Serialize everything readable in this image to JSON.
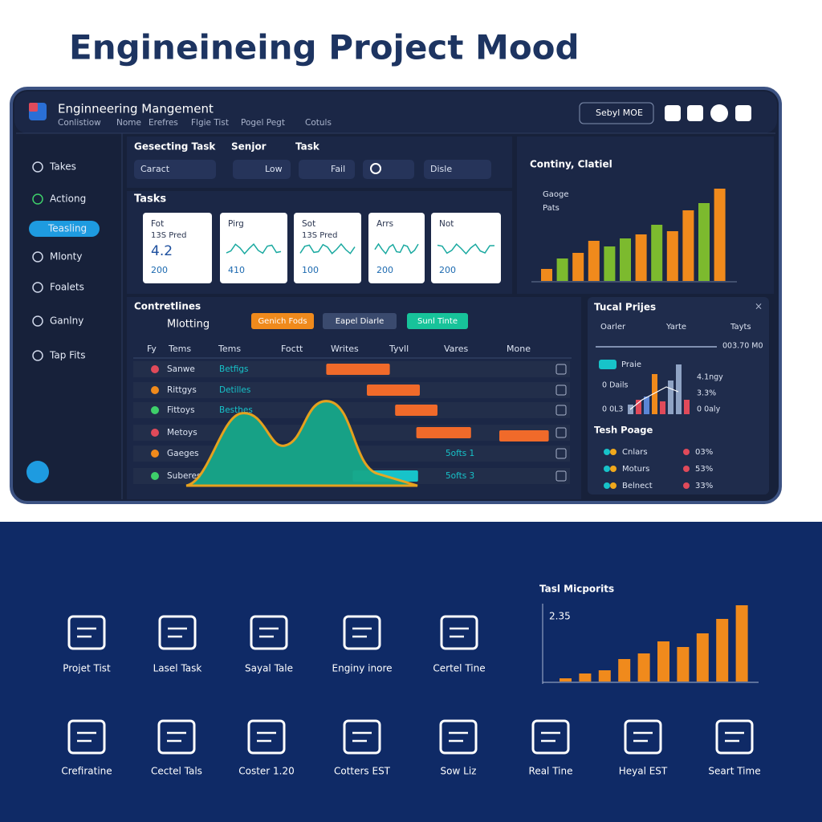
{
  "header": {
    "title": "Engineineing Project Mood"
  },
  "app": {
    "title": "Enginneering Mangement",
    "nav": [
      "Conlistiow",
      "Nome",
      "Erefres",
      "Flgie Tist",
      "Pogel Pegt",
      "Cotuls"
    ],
    "account": "Sebyl MOE"
  },
  "sidebar": {
    "items": [
      "Takes",
      "Actiong",
      "Teasling",
      "Mlonty",
      "Foalets",
      "Ganlny",
      "Tap Fits"
    ],
    "active": 2
  },
  "filters": {
    "labels": [
      "Gesecting Task",
      "Senjor",
      "Task"
    ],
    "controls": [
      "Caract",
      "Low",
      "Fail",
      "Disle"
    ]
  },
  "tasks": {
    "title": "Tasks",
    "cards": [
      {
        "label": "Fot",
        "sub": "13S Pred",
        "value": "4.2",
        "foot": "200"
      },
      {
        "label": "Pirg",
        "foot": "410"
      },
      {
        "label": "Sot",
        "sub": "13S Pred",
        "foot": "100"
      },
      {
        "label": "Arrs",
        "foot": "200"
      },
      {
        "label": "Not",
        "foot": "200"
      }
    ]
  },
  "trend_chart": {
    "title": "Continy, Clatiel",
    "legend": [
      "Gaoge",
      "Pats"
    ],
    "values": [
      15,
      28,
      35,
      50,
      43,
      53,
      58,
      70,
      62,
      88,
      97,
      115
    ],
    "colors": [
      "#f08a1c",
      "#7cba2e",
      "#f08a1c",
      "#f08a1c",
      "#7cba2e",
      "#7cba2e",
      "#f08a1c",
      "#7cba2e",
      "#f08a1c",
      "#f08a1c",
      "#7cba2e",
      "#f08a1c"
    ]
  },
  "timeline": {
    "title": "Contretlines",
    "subtitle": "Mlotting",
    "buttons": [
      "Genich Fods",
      "Eapel Diarle",
      "Sunl Tinte"
    ],
    "columns": [
      "Fy",
      "Tems",
      "Tems",
      "Foctt",
      "Writes",
      "Tyvll",
      "Vares",
      "Mone"
    ],
    "rows": [
      {
        "name": "Sanwe",
        "detail": "Betfigs",
        "bars": [
          {
            "start": 31,
            "end": 49,
            "color": "#f06a2a"
          }
        ]
      },
      {
        "name": "Rittgys",
        "detail": "Detilles",
        "bars": [
          {
            "start": 42.5,
            "end": 57.5,
            "color": "#f06a2a"
          }
        ]
      },
      {
        "name": "Fittoys",
        "detail": "Besthes",
        "bars": [
          {
            "start": 50.5,
            "end": 62.5,
            "color": "#f06a2a"
          }
        ]
      },
      {
        "name": "Metoys",
        "bars": [
          {
            "start": 56.5,
            "end": 72,
            "color": "#f06a2a"
          },
          {
            "start": 80,
            "end": 94,
            "color": "#f06a2a"
          }
        ]
      },
      {
        "name": "Gaeges",
        "detail": "5ofts 1",
        "bars": []
      },
      {
        "name": "Suberes",
        "detail": "5ofts 3",
        "bars": [
          {
            "start": 38.5,
            "end": 57,
            "color": "#17c3c9"
          }
        ]
      }
    ]
  },
  "summary": {
    "title": "Tucal Prijes",
    "columns": [
      "Oarler",
      "Yarte",
      "Tayts"
    ],
    "range": "003.70 M0",
    "tag": "Praie",
    "left_labels": [
      "0 Dails",
      "0 0L3"
    ],
    "right_labels": [
      "4.1ngy",
      "3.3%",
      "0 0aly"
    ],
    "bars": [
      12,
      18,
      22,
      50,
      16,
      42,
      62,
      18
    ],
    "bar_colors": [
      "#8fa3c4",
      "#e04a5a",
      "#5b86d6",
      "#f08a1c",
      "#e04a5a",
      "#8fa3c4",
      "#8fa3c4",
      "#e04a5a"
    ],
    "list_title": "Tesh Poage",
    "list": [
      {
        "name": "Cnlars",
        "value": "03%"
      },
      {
        "name": "Moturs",
        "value": "53%"
      },
      {
        "name": "Belnect",
        "value": "33%"
      }
    ]
  },
  "icons_row1": [
    "Projet Tist",
    "Lasel Task",
    "Sayal Tale",
    "Enginy inore",
    "Certel Tine"
  ],
  "icons_row2": [
    "Crefiratine",
    "Cectel Tals",
    "Coster 1.20",
    "Cotters EST",
    "Sow Liz",
    "Real Tine",
    "Heyal EST",
    "Seart Time"
  ],
  "bottom_chart": {
    "title": "Tasl Micporits",
    "label": "2.35",
    "values": [
      4,
      10,
      14,
      28,
      35,
      50,
      43,
      60,
      78,
      95
    ],
    "color": "#f08a1c"
  }
}
